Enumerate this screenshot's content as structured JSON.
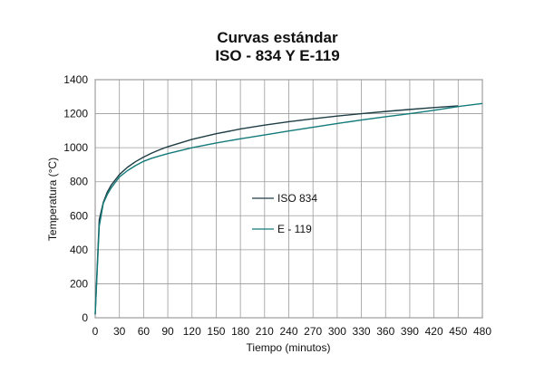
{
  "chart_data": {
    "type": "line",
    "title": "Curvas estándar",
    "subtitle": "ISO - 834 Y E-119",
    "xlabel": "Tiempo (minutos)",
    "ylabel": "Temperatura (°C)",
    "xlim": [
      0,
      480
    ],
    "ylim": [
      0,
      1400
    ],
    "xticks": [
      "0",
      "30",
      "60",
      "90",
      "120",
      "150",
      "180",
      "210",
      "240",
      "270",
      "300",
      "330",
      "360",
      "390",
      "420",
      "450",
      "480"
    ],
    "yticks": [
      "0",
      "200",
      "400",
      "600",
      "800",
      "1000",
      "1200",
      "1400"
    ],
    "grid": true,
    "legend_placement": "center",
    "series": [
      {
        "name": "ISO 834",
        "color": "#1f3d44",
        "x": [
          0,
          5,
          10,
          15,
          20,
          30,
          40,
          50,
          60,
          70,
          80,
          90,
          120,
          150,
          180,
          210,
          240,
          270,
          300,
          330,
          360,
          390,
          420,
          450
        ],
        "y": [
          20,
          576,
          678,
          739,
          781,
          842,
          885,
          918,
          945,
          968,
          988,
          1006,
          1049,
          1082,
          1110,
          1133,
          1153,
          1170,
          1186,
          1200,
          1213,
          1225,
          1236,
          1246
        ]
      },
      {
        "name": "E - 119",
        "color": "#137a7a",
        "x": [
          0,
          5,
          10,
          15,
          20,
          30,
          40,
          50,
          60,
          70,
          80,
          90,
          120,
          150,
          180,
          210,
          240,
          270,
          300,
          330,
          360,
          390,
          420,
          450,
          480
        ],
        "y": [
          20,
          538,
          672,
          725,
          765,
          828,
          865,
          895,
          920,
          938,
          952,
          965,
          1000,
          1028,
          1052,
          1075,
          1098,
          1120,
          1142,
          1163,
          1182,
          1200,
          1220,
          1242,
          1260
        ]
      }
    ]
  }
}
